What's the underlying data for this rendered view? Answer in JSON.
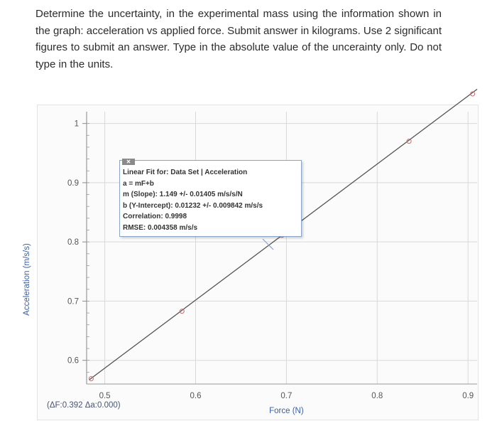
{
  "question": {
    "text": "Determine the uncertainty, in the experimental mass using the information shown in the graph: acceleration vs applied force. Submit answer in kilograms. Use 2 significant figures to submit an answer. Type in the absolute value of the uncerainty only. Do not type in the units."
  },
  "fit_box": {
    "close_label": "✕",
    "title": "Linear Fit for: Data Set | Acceleration",
    "equation": "a = mF+b",
    "slope": "m (Slope): 1.149 +/- 0.01405 m/s/s/N",
    "intercept": "b (Y-Intercept): 0.01232 +/- 0.009842 m/s/s",
    "correlation": "Correlation: 0.9998",
    "rmse": "RMSE: 0.004358 m/s/s"
  },
  "deltas": "(ΔF:0.392 Δa:0.000)",
  "chart_data": {
    "type": "scatter",
    "xlabel": "Force (N)",
    "ylabel": "Acceleration (m/s/s)",
    "xlim": [
      0.48,
      0.91
    ],
    "ylim": [
      0.56,
      1.02
    ],
    "x_ticks": [
      0.5,
      0.6,
      0.7,
      0.8,
      0.9
    ],
    "x_tick_labels": [
      "0.5",
      "0.6",
      "0.7",
      "0.8",
      "0.9"
    ],
    "y_ticks": [
      0.6,
      0.7,
      0.8,
      0.9,
      1.0
    ],
    "y_tick_labels": [
      "0.6",
      "0.7",
      "0.8",
      "0.9",
      "1"
    ],
    "grid": true,
    "colors": {
      "fit_line": "#555555",
      "points": "#cc6a6a",
      "axis_label": "#3a5fa8"
    },
    "series": [
      {
        "points": [
          {
            "x": 0.485,
            "y": 0.569
          },
          {
            "x": 0.585,
            "y": 0.683
          },
          {
            "x": 0.695,
            "y": 0.811
          },
          {
            "x": 0.835,
            "y": 0.97
          },
          {
            "x": 0.905,
            "y": 1.05
          }
        ]
      }
    ],
    "fit": {
      "slope": 1.149,
      "intercept": 0.01232
    }
  }
}
